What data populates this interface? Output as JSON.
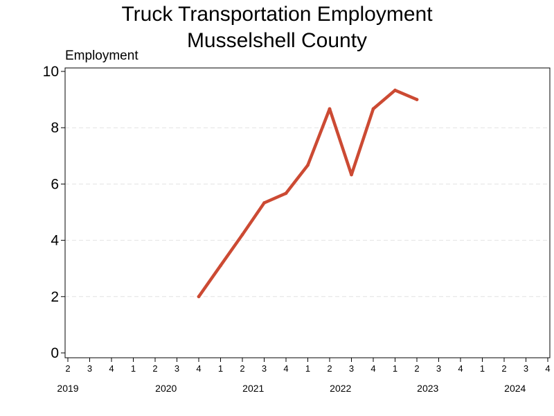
{
  "chart_data": {
    "type": "line",
    "title_lines": [
      "Truck Transportation Employment",
      "Musselshell County"
    ],
    "ylabel": "Employment",
    "xlabel": "",
    "ylim": [
      0,
      10
    ],
    "yticks": [
      0,
      2,
      4,
      6,
      8,
      10
    ],
    "grid": "horizontal dashed",
    "line_color": "#cc4a33",
    "x_quarters": [
      {
        "year": 2019,
        "q": 2
      },
      {
        "year": 2019,
        "q": 3
      },
      {
        "year": 2019,
        "q": 4
      },
      {
        "year": 2020,
        "q": 1
      },
      {
        "year": 2020,
        "q": 2
      },
      {
        "year": 2020,
        "q": 3
      },
      {
        "year": 2020,
        "q": 4
      },
      {
        "year": 2021,
        "q": 1
      },
      {
        "year": 2021,
        "q": 2
      },
      {
        "year": 2021,
        "q": 3
      },
      {
        "year": 2021,
        "q": 4
      },
      {
        "year": 2022,
        "q": 1
      },
      {
        "year": 2022,
        "q": 2
      },
      {
        "year": 2022,
        "q": 3
      },
      {
        "year": 2022,
        "q": 4
      },
      {
        "year": 2023,
        "q": 1
      },
      {
        "year": 2023,
        "q": 2
      },
      {
        "year": 2023,
        "q": 3
      },
      {
        "year": 2023,
        "q": 4
      },
      {
        "year": 2024,
        "q": 1
      },
      {
        "year": 2024,
        "q": 2
      },
      {
        "year": 2024,
        "q": 3
      },
      {
        "year": 2024,
        "q": 4
      }
    ],
    "year_labels": [
      "2019",
      "2020",
      "2021",
      "2022",
      "2023",
      "2024"
    ],
    "series": [
      {
        "points": [
          {
            "year": 2020,
            "q": 4,
            "value": 2.0
          },
          {
            "year": 2021,
            "q": 1,
            "value": 3.1
          },
          {
            "year": 2021,
            "q": 2,
            "value": 4.2
          },
          {
            "year": 2021,
            "q": 3,
            "value": 5.33
          },
          {
            "year": 2021,
            "q": 4,
            "value": 5.67
          },
          {
            "year": 2022,
            "q": 1,
            "value": 6.67
          },
          {
            "year": 2022,
            "q": 2,
            "value": 8.67
          },
          {
            "year": 2022,
            "q": 3,
            "value": 6.33
          },
          {
            "year": 2022,
            "q": 4,
            "value": 8.67
          },
          {
            "year": 2023,
            "q": 1,
            "value": 9.33
          },
          {
            "year": 2023,
            "q": 2,
            "value": 9.0
          }
        ]
      }
    ]
  }
}
